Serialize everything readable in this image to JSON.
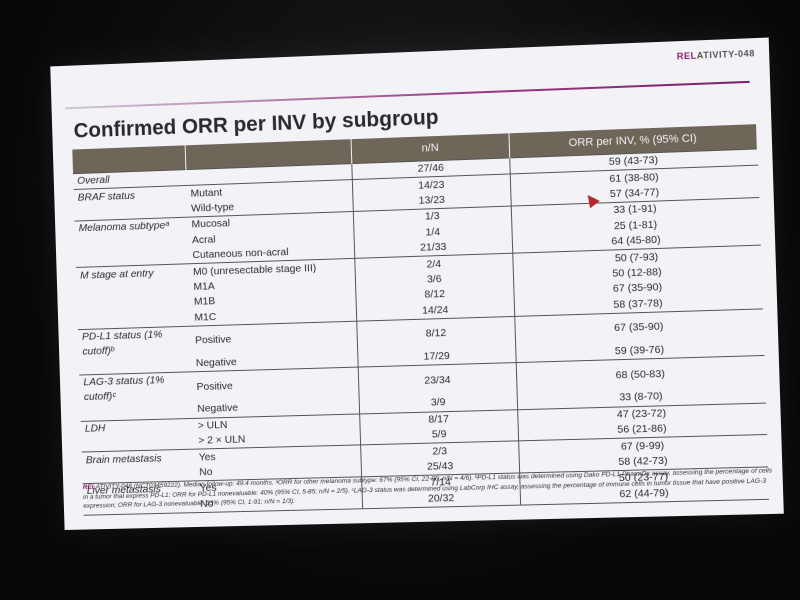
{
  "brand": {
    "prefix": "REL",
    "rest": "ATIVITY-048"
  },
  "title": "Confirmed ORR per INV by subgroup",
  "headers": {
    "col1": "",
    "col2": "",
    "col3": "n/N",
    "col4": "ORR per INV, % (95% CI)"
  },
  "rows": [
    {
      "g": "Overall",
      "s": "",
      "n": "27/46",
      "orr": "59 (43-73)",
      "first": true
    },
    {
      "g": "BRAF status",
      "s": "Mutant",
      "n": "14/23",
      "orr": "61 (38-80)",
      "first": true
    },
    {
      "g": "",
      "s": "Wild-type",
      "n": "13/23",
      "orr": "57 (34-77)"
    },
    {
      "g": "Melanoma subtypeᵃ",
      "s": "Mucosal",
      "n": "1/3",
      "orr": "33 (1-91)",
      "first": true
    },
    {
      "g": "",
      "s": "Acral",
      "n": "1/4",
      "orr": "25 (1-81)"
    },
    {
      "g": "",
      "s": "Cutaneous non-acral",
      "n": "21/33",
      "orr": "64 (45-80)"
    },
    {
      "g": "M stage at entry",
      "s": "M0 (unresectable stage III)",
      "n": "2/4",
      "orr": "50 (7-93)",
      "first": true
    },
    {
      "g": "",
      "s": "M1A",
      "n": "3/6",
      "orr": "50 (12-88)"
    },
    {
      "g": "",
      "s": "M1B",
      "n": "8/12",
      "orr": "67 (35-90)"
    },
    {
      "g": "",
      "s": "M1C",
      "n": "14/24",
      "orr": "58 (37-78)"
    },
    {
      "g": "PD-L1 status (1% cutoff)ᵇ",
      "s": "Positive",
      "n": "8/12",
      "orr": "67 (35-90)",
      "first": true
    },
    {
      "g": "",
      "s": "Negative",
      "n": "17/29",
      "orr": "59 (39-76)"
    },
    {
      "g": "LAG-3 status (1% cutoff)ᶜ",
      "s": "Positive",
      "n": "23/34",
      "orr": "68 (50-83)",
      "first": true
    },
    {
      "g": "",
      "s": "Negative",
      "n": "3/9",
      "orr": "33 (8-70)"
    },
    {
      "g": "LDH",
      "s": "> ULN",
      "n": "8/17",
      "orr": "47 (23-72)",
      "first": true
    },
    {
      "g": "",
      "s": "> 2 × ULN",
      "n": "5/9",
      "orr": "56 (21-86)"
    },
    {
      "g": "Brain metastasis",
      "s": "Yes",
      "n": "2/3",
      "orr": "67 (9-99)",
      "first": true
    },
    {
      "g": "",
      "s": "No",
      "n": "25/43",
      "orr": "58 (42-73)"
    },
    {
      "g": "Liver metastasis",
      "s": "Yes",
      "n": "7/14",
      "orr": "50 (23-77)",
      "first": true
    },
    {
      "g": "",
      "s": "No",
      "n": "20/32",
      "orr": "62 (44-79)",
      "last": true
    }
  ],
  "footnote": {
    "prefix": "REL",
    "text": "ATIVITY-048 (NCT03459222). Median follow-up: 49.4 months. ᵃORR for other melanoma subtype: 67% (95% CI, 22-96; n/N = 4/6). ᵇPD-L1 status was determined using Dako PD-L1 PharmDx assay, assessing the percentage of cells in a tumor that express PD-L1; ORR for PD-L1 nonevaluable: 40% (95% CI, 5-85; n/N = 2/5). ᶜLAG-3 status was determined using LabCorp IHC assay, assessing the percentage of immune cells in tumor tissue that have positive LAG-3 expression; ORR for LAG-3 nonevaluable: 33% (95% CI, 1-91; n/N = 1/3)."
  },
  "colors": {
    "header_bg": "#6e6659",
    "accent": "#8a1f6b",
    "pointer": "#b3272d"
  },
  "icons": {
    "pointer": "presenter-pointer-icon"
  }
}
